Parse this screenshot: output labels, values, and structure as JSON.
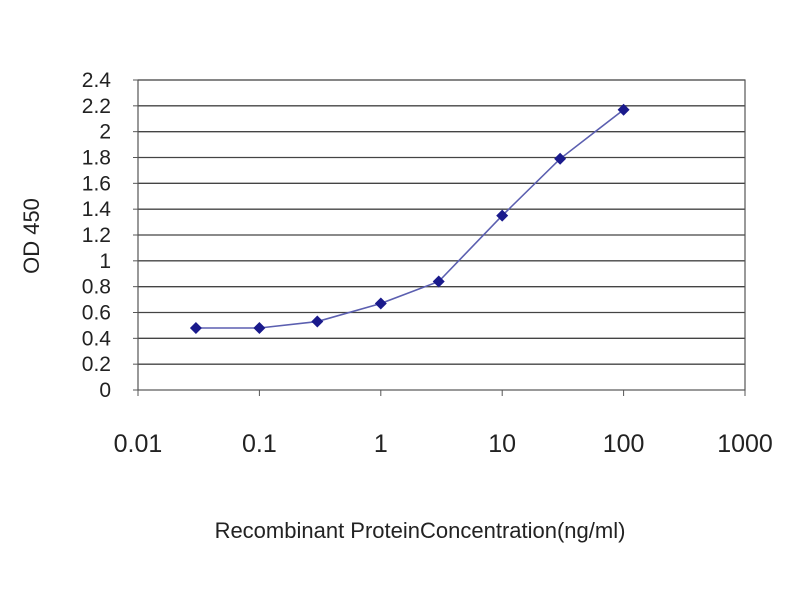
{
  "chart_data": {
    "type": "line",
    "title": "",
    "xlabel": "Recombinant ProteinConcentration(ng/ml)",
    "ylabel": "OD 450",
    "x_scale": "log",
    "xlim": [
      0.01,
      1000
    ],
    "ylim": [
      0,
      2.4
    ],
    "x_tick_labels": [
      "0.01",
      "0.1",
      "1",
      "10",
      "100",
      "1000"
    ],
    "y_tick_labels": [
      "0",
      "0.2",
      "0.4",
      "0.6",
      "0.8",
      "1",
      "1.2",
      "1.4",
      "1.6",
      "1.8",
      "2",
      "2.2",
      "2.4"
    ],
    "grid": "horizontal",
    "legend": "none",
    "series": [
      {
        "x": [
          0.03,
          0.1,
          0.3,
          1,
          3,
          10,
          30,
          100
        ],
        "y": [
          0.48,
          0.48,
          0.53,
          0.67,
          0.84,
          1.35,
          1.79,
          2.17
        ]
      }
    ],
    "colors": {
      "line": "#5b5fb0",
      "marker": "#1a1a8c",
      "grid": "#444444",
      "frame": "#555555"
    }
  }
}
